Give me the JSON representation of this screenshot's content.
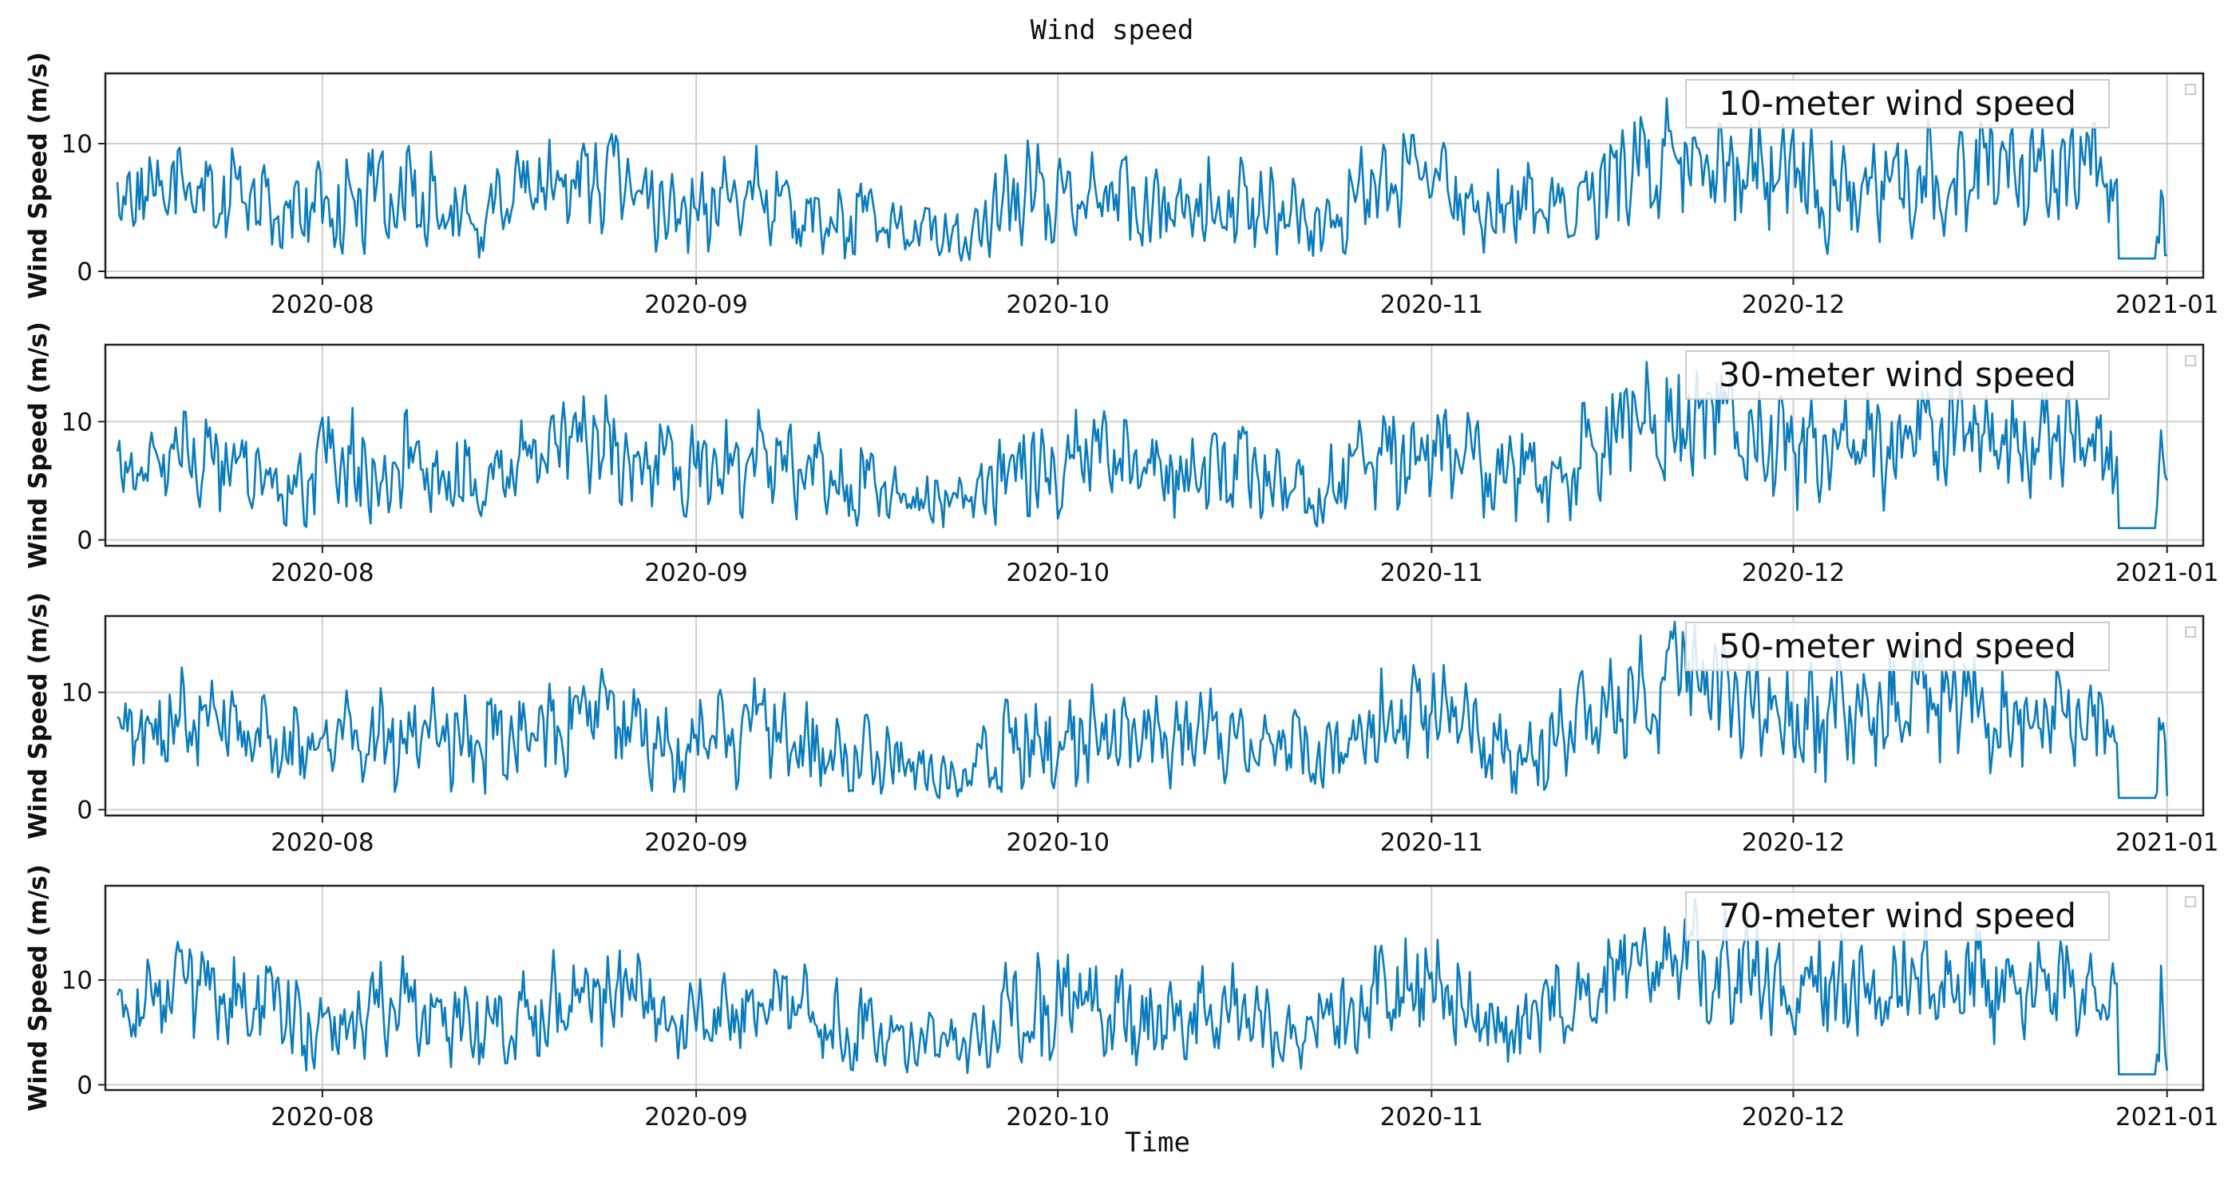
{
  "figure": {
    "title": "Wind speed",
    "xlabel": "Time"
  },
  "chart_data": [
    {
      "type": "line",
      "title": "",
      "xlabel": "",
      "ylabel": "Wind Speed (m/s)",
      "legend": "10-meter wind speed",
      "legend_placement": "top-right",
      "grid": true,
      "xlim": [
        "2020-07-14",
        "2021-01-04"
      ],
      "ylim": [
        -0.5,
        15.5
      ],
      "xticks": [
        "2020-08",
        "2020-09",
        "2020-10",
        "2020-11",
        "2020-12",
        "2021-01"
      ],
      "yticks": [
        0,
        10
      ],
      "color": "#0a7bbd",
      "series": [
        {
          "name": "10-meter wind speed",
          "x": [
            "2020-07-15",
            "2020-07-20",
            "2020-07-25",
            "2020-07-30",
            "2020-08-04",
            "2020-08-09",
            "2020-08-14",
            "2020-08-19",
            "2020-08-24",
            "2020-08-29",
            "2020-09-03",
            "2020-09-08",
            "2020-09-13",
            "2020-09-18",
            "2020-09-23",
            "2020-09-28",
            "2020-10-03",
            "2020-10-08",
            "2020-10-13",
            "2020-10-18",
            "2020-10-23",
            "2020-10-28",
            "2020-11-02",
            "2020-11-07",
            "2020-11-12",
            "2020-11-17",
            "2020-11-22",
            "2020-11-27",
            "2020-12-02",
            "2020-12-07",
            "2020-12-12",
            "2020-12-17",
            "2020-12-22",
            "2020-12-27",
            "2021-01-01"
          ],
          "y": [
            4.8,
            6.5,
            6.0,
            3.2,
            4.5,
            5.2,
            4.0,
            5.5,
            7.4,
            4.2,
            5.0,
            5.6,
            3.4,
            2.8,
            2.2,
            4.7,
            5.5,
            4.6,
            5.0,
            4.2,
            3.4,
            6.4,
            6.9,
            3.8,
            4.2,
            8.4,
            9.0,
            7.6,
            6.4,
            6.8,
            7.2,
            7.0,
            6.9,
            7.0,
            1.2
          ],
          "peak": [
            8.0,
            11.0,
            9.5,
            8.5,
            9.5,
            10.0,
            8.8,
            10.0,
            12.4,
            9.0,
            9.2,
            10.6,
            7.8,
            6.0,
            5.0,
            10.8,
            10.2,
            9.5,
            9.6,
            8.8,
            7.6,
            11.1,
            11.0,
            8.2,
            9.2,
            14.5,
            15.0,
            13.0,
            11.5,
            12.0,
            12.2,
            11.8,
            11.2,
            11.8,
            9.3
          ],
          "low": [
            1.5,
            1.8,
            1.2,
            0.8,
            1.0,
            1.2,
            1.0,
            1.5,
            2.2,
            1.0,
            1.2,
            1.6,
            1.0,
            0.8,
            0.6,
            1.4,
            1.6,
            1.2,
            1.4,
            1.2,
            0.8,
            2.0,
            2.2,
            1.0,
            1.2,
            3.5,
            4.0,
            3.0,
            0.8,
            2.0,
            2.4,
            2.2,
            2.0,
            2.2,
            1.0
          ]
        }
      ]
    },
    {
      "type": "line",
      "title": "",
      "xlabel": "",
      "ylabel": "Wind Speed (m/s)",
      "legend": "30-meter wind speed",
      "legend_placement": "top-right",
      "grid": true,
      "xlim": [
        "2020-07-14",
        "2021-01-04"
      ],
      "ylim": [
        -0.5,
        16.5
      ],
      "xticks": [
        "2020-08",
        "2020-09",
        "2020-10",
        "2020-11",
        "2020-12",
        "2021-01"
      ],
      "yticks": [
        0,
        10
      ],
      "color": "#0a7bbd",
      "series": [
        {
          "name": "30-meter wind speed",
          "x": [
            "2020-07-15",
            "2020-07-20",
            "2020-07-25",
            "2020-07-30",
            "2020-08-04",
            "2020-08-09",
            "2020-08-14",
            "2020-08-19",
            "2020-08-24",
            "2020-08-29",
            "2020-09-03",
            "2020-09-08",
            "2020-09-13",
            "2020-09-18",
            "2020-09-23",
            "2020-09-28",
            "2020-10-03",
            "2020-10-08",
            "2020-10-13",
            "2020-10-18",
            "2020-10-23",
            "2020-10-28",
            "2020-11-02",
            "2020-11-07",
            "2020-11-12",
            "2020-11-17",
            "2020-11-22",
            "2020-11-27",
            "2020-12-02",
            "2020-12-07",
            "2020-12-12",
            "2020-12-17",
            "2020-12-22",
            "2020-12-27",
            "2021-01-01"
          ],
          "y": [
            5.3,
            7.1,
            6.6,
            3.6,
            5.0,
            5.8,
            4.5,
            6.1,
            8.0,
            4.7,
            5.5,
            6.2,
            3.9,
            3.2,
            2.6,
            5.2,
            6.1,
            5.1,
            5.6,
            4.7,
            3.9,
            7.0,
            7.6,
            4.3,
            4.8,
            9.2,
            9.8,
            8.4,
            7.0,
            7.5,
            7.9,
            7.7,
            7.6,
            7.7,
            1.2
          ],
          "peak": [
            8.8,
            12.0,
            10.4,
            9.2,
            12.2,
            10.8,
            9.6,
            10.8,
            13.0,
            9.8,
            10.0,
            11.6,
            8.6,
            6.6,
            5.6,
            11.8,
            11.2,
            10.4,
            10.6,
            9.6,
            8.4,
            12.0,
            12.0,
            9.0,
            10.0,
            15.8,
            16.0,
            14.0,
            12.4,
            13.2,
            13.6,
            13.0,
            12.4,
            12.8,
            10.0
          ],
          "low": [
            1.8,
            2.0,
            1.4,
            1.0,
            1.2,
            1.4,
            1.2,
            1.8,
            2.5,
            1.2,
            1.4,
            1.8,
            1.2,
            1.0,
            0.8,
            1.6,
            1.8,
            1.4,
            1.6,
            1.4,
            1.0,
            2.3,
            2.5,
            1.2,
            1.4,
            4.0,
            4.5,
            3.4,
            1.0,
            2.3,
            2.7,
            2.5,
            2.3,
            2.5,
            1.0
          ]
        }
      ]
    },
    {
      "type": "line",
      "title": "",
      "xlabel": "",
      "ylabel": "Wind Speed (m/s)",
      "legend": "50-meter wind speed",
      "legend_placement": "top-right",
      "grid": true,
      "xlim": [
        "2020-07-14",
        "2021-01-04"
      ],
      "ylim": [
        -0.5,
        16.5
      ],
      "xticks": [
        "2020-08",
        "2020-09",
        "2020-10",
        "2020-11",
        "2020-12",
        "2021-01"
      ],
      "yticks": [
        0,
        10
      ],
      "color": "#0a7bbd",
      "series": [
        {
          "name": "50-meter wind speed",
          "x": [
            "2020-07-15",
            "2020-07-20",
            "2020-07-25",
            "2020-07-30",
            "2020-08-04",
            "2020-08-09",
            "2020-08-14",
            "2020-08-19",
            "2020-08-24",
            "2020-08-29",
            "2020-09-03",
            "2020-09-08",
            "2020-09-13",
            "2020-09-18",
            "2020-09-23",
            "2020-09-28",
            "2020-10-03",
            "2020-10-08",
            "2020-10-13",
            "2020-10-18",
            "2020-10-23",
            "2020-10-28",
            "2020-11-02",
            "2020-11-07",
            "2020-11-12",
            "2020-11-17",
            "2020-11-22",
            "2020-11-27",
            "2020-12-02",
            "2020-12-07",
            "2020-12-12",
            "2020-12-17",
            "2020-12-22",
            "2020-12-27",
            "2021-01-01"
          ],
          "y": [
            5.6,
            7.5,
            7.0,
            3.9,
            5.3,
            6.1,
            4.8,
            6.4,
            8.4,
            5.0,
            5.8,
            6.5,
            4.1,
            3.4,
            2.8,
            5.5,
            6.4,
            5.4,
            5.9,
            5.0,
            4.1,
            7.4,
            8.0,
            4.6,
            5.1,
            9.7,
            10.3,
            8.9,
            7.4,
            7.9,
            8.3,
            8.1,
            8.0,
            8.1,
            1.2
          ],
          "peak": [
            9.0,
            12.5,
            10.8,
            9.6,
            10.6,
            11.2,
            10.0,
            11.2,
            13.4,
            10.2,
            10.4,
            12.0,
            9.0,
            7.0,
            6.0,
            12.2,
            11.6,
            10.8,
            11.0,
            10.0,
            8.8,
            12.4,
            12.6,
            9.4,
            10.4,
            16.0,
            16.2,
            14.6,
            13.0,
            13.8,
            14.2,
            13.6,
            13.0,
            13.4,
            10.0
          ],
          "low": [
            1.9,
            2.2,
            1.5,
            1.1,
            1.3,
            1.5,
            1.3,
            1.9,
            2.7,
            1.3,
            1.5,
            1.9,
            1.3,
            1.1,
            0.9,
            1.7,
            1.9,
            1.5,
            1.7,
            1.5,
            1.1,
            2.5,
            2.7,
            1.3,
            1.5,
            4.3,
            4.8,
            3.6,
            1.1,
            2.5,
            2.9,
            2.7,
            2.5,
            2.7,
            1.0
          ]
        }
      ]
    },
    {
      "type": "line",
      "title": "",
      "xlabel": "",
      "ylabel": "Wind Speed (m/s)",
      "legend": "70-meter wind speed",
      "legend_placement": "top-right",
      "grid": true,
      "xlim": [
        "2020-07-14",
        "2021-01-04"
      ],
      "ylim": [
        -0.5,
        19.0
      ],
      "xticks": [
        "2020-08",
        "2020-09",
        "2020-10",
        "2020-11",
        "2020-12",
        "2021-01"
      ],
      "yticks": [
        0,
        10
      ],
      "color": "#0a7bbd",
      "series": [
        {
          "name": "70-meter wind speed",
          "x": [
            "2020-07-15",
            "2020-07-20",
            "2020-07-25",
            "2020-07-30",
            "2020-08-04",
            "2020-08-09",
            "2020-08-14",
            "2020-08-19",
            "2020-08-24",
            "2020-08-29",
            "2020-09-03",
            "2020-09-08",
            "2020-09-13",
            "2020-09-18",
            "2020-09-23",
            "2020-09-28",
            "2020-10-03",
            "2020-10-08",
            "2020-10-13",
            "2020-10-18",
            "2020-10-23",
            "2020-10-28",
            "2020-11-02",
            "2020-11-07",
            "2020-11-12",
            "2020-11-17",
            "2020-11-22",
            "2020-11-27",
            "2020-12-02",
            "2020-12-07",
            "2020-12-12",
            "2020-12-17",
            "2020-12-22",
            "2020-12-27",
            "2021-01-01"
          ],
          "y": [
            6.2,
            8.3,
            7.7,
            4.4,
            5.9,
            6.8,
            5.4,
            7.1,
            9.2,
            5.6,
            6.4,
            7.2,
            4.6,
            3.8,
            3.2,
            6.1,
            7.1,
            6.0,
            6.6,
            5.6,
            4.6,
            8.2,
            8.9,
            5.2,
            5.7,
            10.8,
            11.4,
            9.9,
            8.3,
            8.8,
            9.2,
            9.0,
            8.9,
            9.0,
            1.2
          ],
          "peak": [
            10.0,
            14.0,
            12.2,
            10.8,
            11.8,
            12.6,
            11.2,
            12.6,
            15.0,
            11.4,
            11.6,
            13.4,
            10.0,
            7.8,
            6.8,
            13.8,
            13.0,
            12.0,
            12.4,
            11.2,
            9.8,
            14.0,
            14.0,
            10.6,
            11.6,
            18.0,
            18.2,
            16.4,
            14.6,
            15.4,
            16.0,
            15.2,
            14.6,
            15.0,
            11.2
          ],
          "low": [
            2.1,
            2.4,
            1.7,
            1.2,
            1.4,
            1.7,
            1.4,
            2.1,
            3.0,
            1.4,
            1.7,
            2.1,
            1.4,
            1.2,
            1.0,
            1.9,
            2.1,
            1.7,
            1.9,
            1.7,
            1.2,
            2.8,
            3.0,
            1.4,
            1.7,
            4.8,
            5.4,
            4.0,
            1.2,
            2.8,
            3.2,
            3.0,
            2.8,
            3.0,
            1.0
          ]
        }
      ]
    }
  ]
}
